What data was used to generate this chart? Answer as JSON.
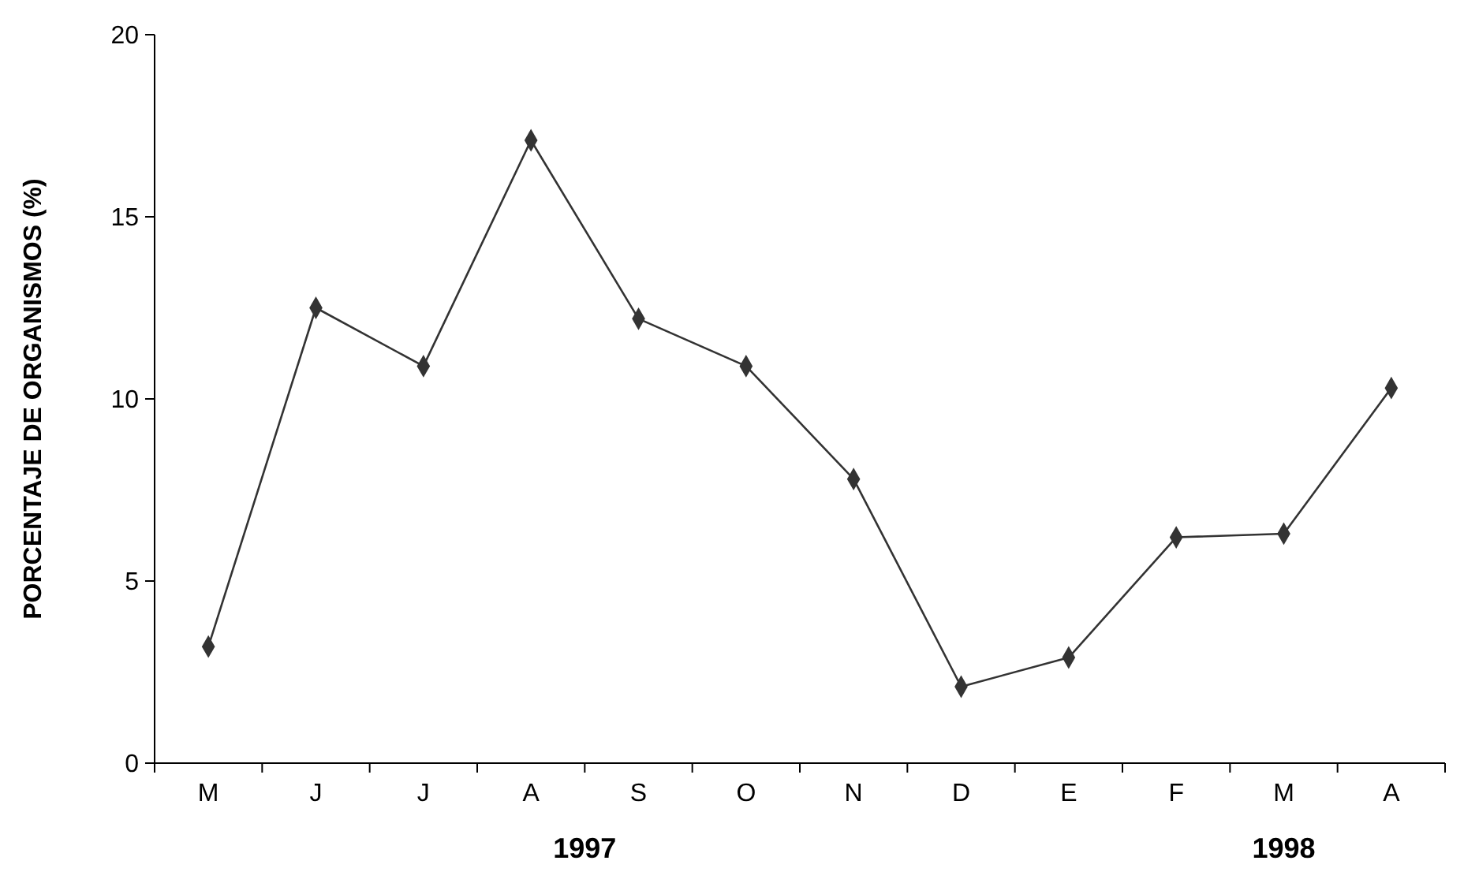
{
  "chart_data": {
    "type": "line",
    "ylabel": "PORCENTAJE DE ORGANISMOS (%)",
    "categories": [
      "M",
      "J",
      "J",
      "A",
      "S",
      "O",
      "N",
      "D",
      "E",
      "F",
      "M",
      "A"
    ],
    "series": [
      {
        "color": "#333333",
        "values": [
          3.2,
          12.5,
          10.9,
          17.1,
          12.2,
          10.9,
          7.8,
          2.1,
          2.9,
          6.2,
          6.3,
          10.3
        ]
      }
    ],
    "ylim": [
      0,
      20
    ],
    "yticks": [
      0,
      5,
      10,
      15,
      20
    ],
    "grid": false,
    "marker": "diamond",
    "line_style": "solid",
    "annotations": [
      "1997",
      "1998"
    ]
  }
}
